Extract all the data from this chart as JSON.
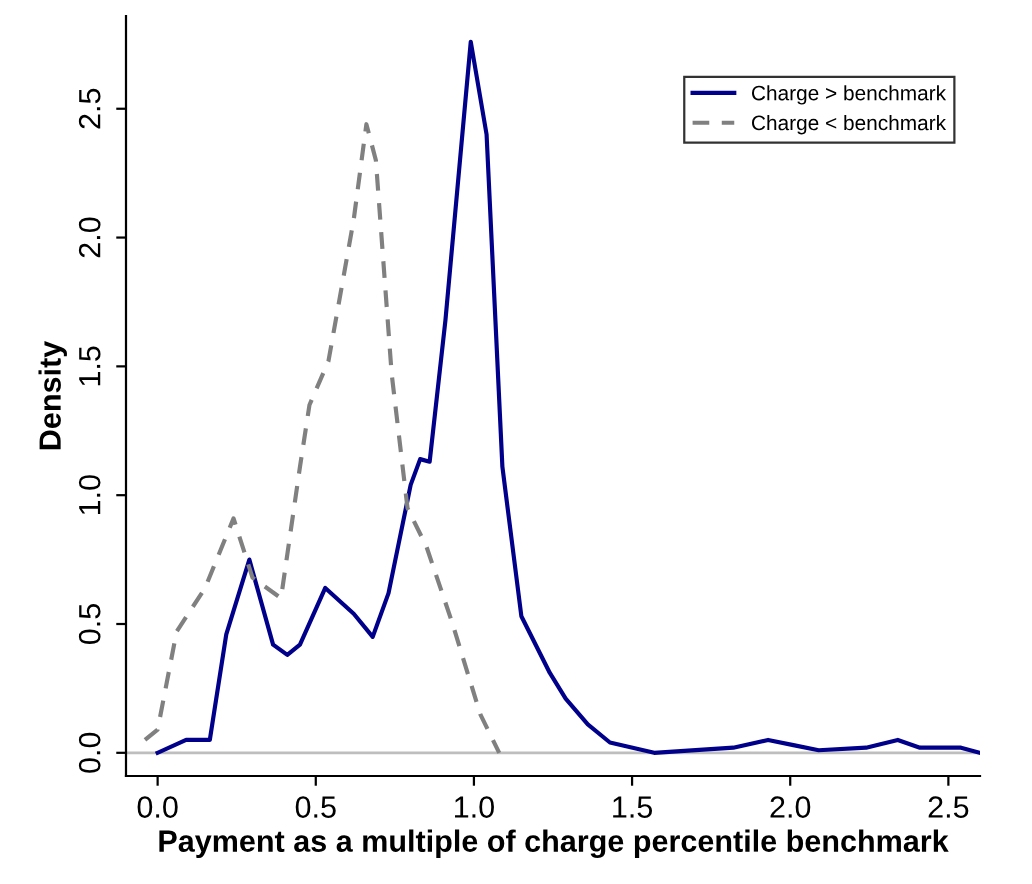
{
  "chart_data": {
    "type": "line",
    "xlabel": "Payment as a multiple of charge percentile benchmark",
    "ylabel": "Density",
    "xlim": [
      -0.1,
      2.6
    ],
    "ylim": [
      -0.09,
      2.86
    ],
    "xticks": [
      {
        "value": 0,
        "label": "0.0"
      },
      {
        "value": 0.5,
        "label": "0.5"
      },
      {
        "value": 1,
        "label": "1.0"
      },
      {
        "value": 1.5,
        "label": "1.5"
      },
      {
        "value": 2,
        "label": "2.0"
      },
      {
        "value": 2.5,
        "label": "2.5"
      }
    ],
    "yticks": [
      {
        "value": 0,
        "label": "0.0"
      },
      {
        "value": 0.5,
        "label": "0.5"
      },
      {
        "value": 1,
        "label": "1.0"
      },
      {
        "value": 1.5,
        "label": "1.5"
      },
      {
        "value": 2,
        "label": "2.0"
      },
      {
        "value": 2.5,
        "label": "2.5"
      }
    ],
    "legend": "top right",
    "grid": false,
    "ref_lines": [
      {
        "axis": "y",
        "value": 0,
        "color": "#bebebe"
      }
    ],
    "series": [
      {
        "name": "Charge > benchmark",
        "color": "#00008b",
        "line_style": "solid",
        "x": [
          0,
          0.09,
          0.165,
          0.217,
          0.29,
          0.365,
          0.41,
          0.45,
          0.53,
          0.62,
          0.68,
          0.73,
          0.8,
          0.83,
          0.86,
          0.91,
          0.99,
          1.04,
          1.09,
          1.15,
          1.24,
          1.29,
          1.36,
          1.43,
          1.57,
          1.82,
          1.93,
          2.01,
          2.09,
          2.24,
          2.34,
          2.41,
          2.54,
          2.6
        ],
        "values": [
          0,
          0.05,
          0.05,
          0.46,
          0.75,
          0.42,
          0.38,
          0.42,
          0.64,
          0.54,
          0.45,
          0.62,
          1.04,
          1.14,
          1.13,
          1.68,
          2.76,
          2.4,
          1.11,
          0.53,
          0.31,
          0.21,
          0.11,
          0.04,
          0,
          0.02,
          0.05,
          0.03,
          0.01,
          0.02,
          0.05,
          0.02,
          0.02,
          0
        ]
      },
      {
        "name": "Charge < benchmark",
        "color": "#808080",
        "line_style": "dashed",
        "x": [
          -0.04,
          0,
          0.06,
          0.15,
          0.24,
          0.3,
          0.39,
          0.45,
          0.48,
          0.54,
          0.62,
          0.66,
          0.69,
          0.74,
          0.79,
          0.85,
          0.93,
          1.02,
          1.08
        ],
        "values": [
          0.05,
          0.09,
          0.47,
          0.64,
          0.91,
          0.68,
          0.6,
          1.11,
          1.35,
          1.52,
          2.07,
          2.44,
          2.3,
          1.47,
          0.95,
          0.8,
          0.51,
          0.15,
          0
        ]
      }
    ]
  }
}
